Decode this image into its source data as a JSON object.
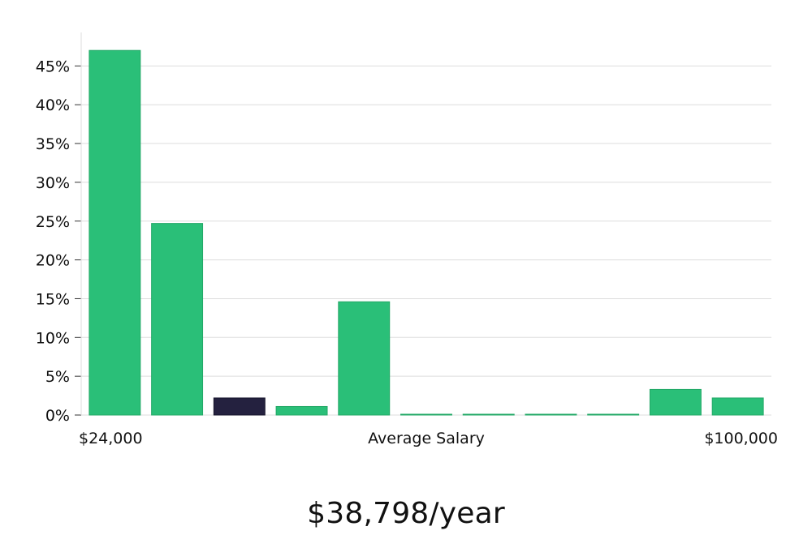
{
  "salary_summary": "$38,798/year",
  "colors": {
    "bar": "#2abf78",
    "highlight": "#24213f",
    "grid": "#dddddd"
  },
  "chart_data": {
    "type": "bar",
    "title": "",
    "xlabel": "Average Salary",
    "ylabel": "",
    "ylim": [
      0,
      50
    ],
    "yticks": [
      0,
      5,
      10,
      15,
      20,
      25,
      30,
      35,
      40,
      45
    ],
    "ytick_labels": [
      "0%",
      "5%",
      "10%",
      "15%",
      "20%",
      "25%",
      "30%",
      "35%",
      "40%",
      "45%"
    ],
    "x_range_labels": [
      "$24,000",
      "$100,000"
    ],
    "grid": true,
    "values": [
      47.0,
      24.7,
      2.2,
      1.1,
      14.6,
      0.1,
      0.1,
      0.1,
      0.1,
      3.3,
      2.2
    ],
    "highlight_index": 2
  }
}
